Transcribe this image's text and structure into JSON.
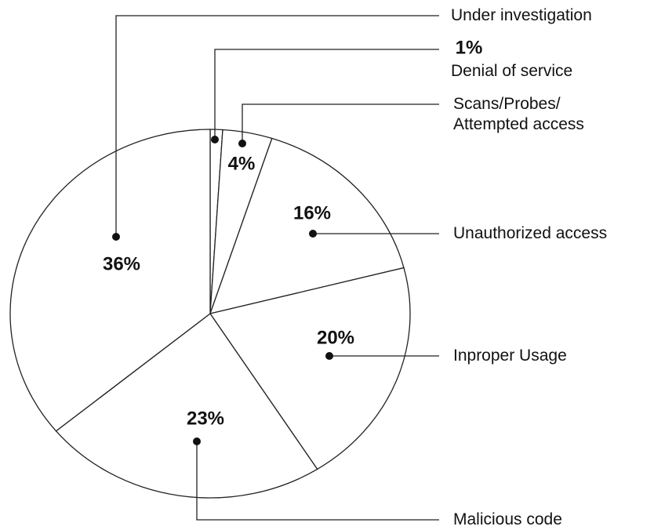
{
  "chart_data": {
    "type": "pie",
    "categories": [
      "Denial of service",
      "Scans/Probes/\nAttempted access",
      "Unauthorized access",
      "Inproper Usage",
      "Malicious code",
      "Under investigation"
    ],
    "values": [
      1,
      4,
      16,
      20,
      23,
      36
    ],
    "value_labels": [
      "1%",
      "4%",
      "16%",
      "20%",
      "23%",
      "36%"
    ],
    "color": "#ffffff"
  }
}
